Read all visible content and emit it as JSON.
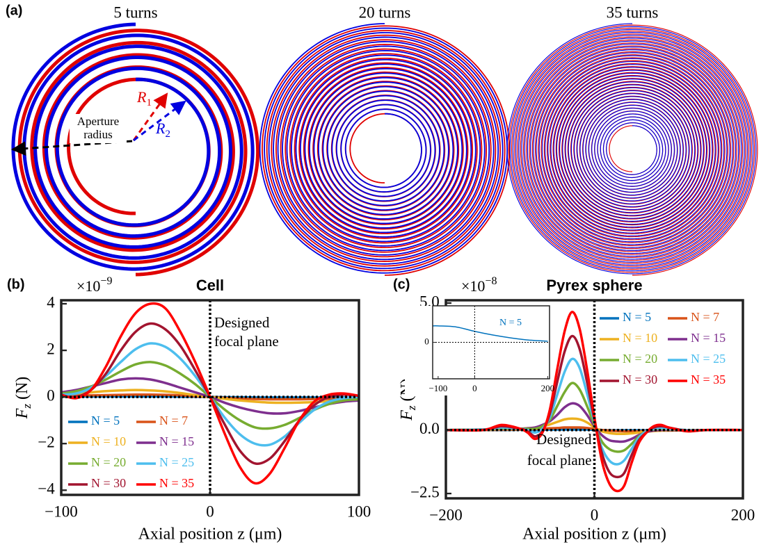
{
  "panel_a": {
    "label": "(a)",
    "spirals": [
      {
        "title": "5 turns",
        "turns": 5
      },
      {
        "title": "20 turns",
        "turns": 20
      },
      {
        "title": "35 turns",
        "turns": 35
      }
    ],
    "aperture_label": [
      "Aperture",
      "radius"
    ],
    "r1": {
      "main": "R",
      "sub": "1"
    },
    "r2": {
      "main": "R",
      "sub": "2"
    }
  },
  "chart_data": [
    {
      "type": "line",
      "panel_label": "(b)",
      "title": "Cell",
      "multiplier": {
        "base": "×10",
        "exp": "−9"
      },
      "ylabel": {
        "main": "F",
        "sub": "z",
        "unit": "(N)"
      },
      "xlabel": "Axial position z (μm)",
      "annotation": [
        "Designed",
        "focal plane"
      ],
      "x": [
        -100,
        -90,
        -80,
        -70,
        -60,
        -50,
        -40,
        -30,
        -20,
        -10,
        0,
        10,
        20,
        30,
        40,
        50,
        60,
        70,
        80,
        90,
        100
      ],
      "series": [
        {
          "name": "N = 5",
          "color": "#0072bd",
          "values": [
            0.02,
            0.02,
            0.02,
            0.02,
            0.02,
            0.02,
            0.02,
            0.02,
            0.01,
            0.01,
            0,
            -0.01,
            -0.01,
            -0.02,
            -0.02,
            -0.02,
            -0.02,
            -0.02,
            -0.02,
            -0.02,
            -0.02
          ]
        },
        {
          "name": "N = 7",
          "color": "#d95319",
          "values": [
            0.05,
            0.06,
            0.07,
            0.08,
            0.09,
            0.1,
            0.1,
            0.09,
            0.07,
            0.03,
            0,
            -0.04,
            -0.07,
            -0.09,
            -0.1,
            -0.1,
            -0.1,
            -0.09,
            -0.08,
            -0.07,
            -0.06
          ]
        },
        {
          "name": "N = 10",
          "color": "#edb120",
          "values": [
            0.1,
            0.15,
            0.2,
            0.25,
            0.28,
            0.3,
            0.28,
            0.24,
            0.17,
            0.08,
            0,
            -0.08,
            -0.15,
            -0.2,
            -0.24,
            -0.25,
            -0.24,
            -0.22,
            -0.18,
            -0.15,
            -0.12
          ]
        },
        {
          "name": "N = 15",
          "color": "#7e2f8e",
          "values": [
            0.2,
            0.3,
            0.45,
            0.6,
            0.75,
            0.8,
            0.75,
            0.6,
            0.4,
            0.2,
            0,
            -0.25,
            -0.45,
            -0.6,
            -0.7,
            -0.7,
            -0.6,
            -0.45,
            -0.3,
            -0.2,
            -0.15
          ]
        },
        {
          "name": "N = 20",
          "color": "#77ac30",
          "values": [
            0.15,
            0.25,
            0.45,
            0.75,
            1.1,
            1.4,
            1.5,
            1.35,
            1.0,
            0.55,
            0,
            -0.55,
            -1.0,
            -1.3,
            -1.35,
            -1.2,
            -0.9,
            -0.55,
            -0.3,
            -0.15,
            -0.1
          ]
        },
        {
          "name": "N = 25",
          "color": "#4dbeee",
          "values": [
            0.1,
            0.15,
            0.4,
            0.9,
            1.5,
            2.05,
            2.3,
            2.15,
            1.65,
            0.9,
            0,
            -0.9,
            -1.6,
            -2.0,
            -2.05,
            -1.7,
            -1.1,
            -0.55,
            -0.2,
            -0.05,
            0
          ]
        },
        {
          "name": "N = 30",
          "color": "#a2142f",
          "values": [
            0.05,
            0,
            0.3,
            1.0,
            2.0,
            2.8,
            3.15,
            2.9,
            2.2,
            1.15,
            0,
            -1.2,
            -2.3,
            -2.85,
            -2.65,
            -1.9,
            -1.0,
            -0.35,
            0,
            0.1,
            0.05
          ]
        },
        {
          "name": "N = 35",
          "color": "#ff0000",
          "values": [
            0.1,
            -0.05,
            0.3,
            1.3,
            2.6,
            3.6,
            4.0,
            3.8,
            2.8,
            1.5,
            0,
            -1.6,
            -3.0,
            -3.7,
            -3.3,
            -2.2,
            -1.0,
            -0.2,
            0.1,
            0.15,
            0.05
          ]
        }
      ],
      "xlim": [
        -100,
        100
      ],
      "xticks": [
        {
          "value": -100,
          "label": "−100"
        },
        0,
        100
      ],
      "ylim": [
        -4.2,
        4.15
      ],
      "yticks": [
        {
          "value": -4,
          "label": "−4"
        },
        {
          "value": -2,
          "label": "−2"
        },
        0,
        2,
        4
      ],
      "legend": "lower left",
      "vline": 0,
      "hline": 0
    },
    {
      "type": "line",
      "panel_label": "(c)",
      "title": "Pyrex sphere",
      "multiplier": {
        "base": "×10",
        "exp": "−8"
      },
      "ylabel": {
        "main": "F",
        "sub": "z",
        "unit": "(N)"
      },
      "xlabel": "Axial position z (μm)",
      "annotation": [
        "Designed",
        "focal plane"
      ],
      "x": [
        -200,
        -150,
        -125,
        -100,
        -90,
        -80,
        -70,
        -60,
        -50,
        -40,
        -30,
        -20,
        -10,
        0,
        10,
        20,
        30,
        40,
        50,
        60,
        70,
        80,
        90,
        100,
        125,
        150,
        200
      ],
      "series": [
        {
          "name": "N = 5",
          "color": "#0072bd",
          "values": [
            0,
            0,
            0,
            0.01,
            0.01,
            0.01,
            0.01,
            0.02,
            0.02,
            0.02,
            0.02,
            0.02,
            0.02,
            0.01,
            0,
            -0.01,
            -0.01,
            -0.01,
            -0.01,
            -0.01,
            -0.01,
            -0.01,
            0,
            0,
            0,
            0,
            0
          ]
        },
        {
          "name": "N = 7",
          "color": "#d95319",
          "values": [
            0,
            0,
            0.01,
            0.02,
            0.03,
            0.04,
            0.05,
            0.07,
            0.08,
            0.1,
            0.1,
            0.1,
            0.08,
            0.04,
            0,
            -0.02,
            -0.04,
            -0.05,
            -0.05,
            -0.05,
            -0.04,
            -0.03,
            -0.02,
            -0.02,
            -0.01,
            0,
            0
          ]
        },
        {
          "name": "N = 10",
          "color": "#edb120",
          "values": [
            0,
            0.01,
            0.02,
            0.05,
            0.07,
            0.1,
            0.15,
            0.22,
            0.32,
            0.42,
            0.45,
            0.42,
            0.3,
            0.1,
            -0.05,
            -0.12,
            -0.15,
            -0.15,
            -0.13,
            -0.1,
            -0.07,
            -0.04,
            -0.02,
            -0.01,
            0,
            0,
            0
          ]
        },
        {
          "name": "N = 15",
          "color": "#7e2f8e",
          "values": [
            0,
            0.02,
            0.03,
            0.05,
            0.07,
            0.1,
            0.2,
            0.35,
            0.6,
            0.9,
            1.05,
            0.95,
            0.6,
            0.15,
            -0.2,
            -0.4,
            -0.45,
            -0.45,
            -0.35,
            -0.2,
            -0.08,
            -0.02,
            0,
            0,
            0,
            0,
            0
          ]
        },
        {
          "name": "N = 20",
          "color": "#77ac30",
          "values": [
            0,
            0.02,
            0.05,
            0.05,
            0.05,
            0.05,
            0.15,
            0.4,
            0.95,
            1.5,
            1.85,
            1.6,
            0.95,
            0.2,
            -0.45,
            -0.75,
            -0.85,
            -0.8,
            -0.55,
            -0.25,
            -0.05,
            0.03,
            0.05,
            0.03,
            0,
            0,
            0
          ]
        },
        {
          "name": "N = 25",
          "color": "#4dbeee",
          "values": [
            0,
            0.02,
            0.1,
            0.05,
            0,
            -0.1,
            0.05,
            0.5,
            1.4,
            2.3,
            2.8,
            2.45,
            1.45,
            0.3,
            -0.7,
            -1.2,
            -1.35,
            -1.2,
            -0.75,
            -0.3,
            -0.05,
            0.05,
            0.08,
            0.05,
            0,
            0,
            0
          ]
        },
        {
          "name": "N = 30",
          "color": "#a2142f",
          "values": [
            0,
            0,
            0.15,
            0.05,
            -0.05,
            -0.25,
            -0.05,
            0.65,
            1.9,
            3.1,
            3.7,
            3.2,
            1.9,
            0.4,
            -0.9,
            -1.65,
            -1.85,
            -1.7,
            -1.0,
            -0.4,
            -0.1,
            0.1,
            0.15,
            0.1,
            -0.03,
            0,
            0
          ]
        },
        {
          "name": "N = 35",
          "color": "#ff0000",
          "values": [
            0,
            0,
            0.2,
            0.05,
            -0.1,
            -0.35,
            -0.1,
            0.8,
            2.4,
            3.9,
            4.65,
            4.0,
            2.4,
            0.5,
            -1.2,
            -2.1,
            -2.4,
            -2.2,
            -1.3,
            -0.5,
            -0.1,
            0.15,
            0.2,
            0.1,
            -0.05,
            0,
            0
          ]
        }
      ],
      "xlim": [
        -200,
        200
      ],
      "xticks": [
        {
          "value": -200,
          "label": "−200"
        },
        0,
        200
      ],
      "ylim": [
        -2.69,
        5.11
      ],
      "yticks": [
        {
          "value": -2.5,
          "label": "−2.5"
        },
        {
          "value": 0,
          "label": "0.0"
        },
        {
          "value": 2.5,
          "label": "2.5"
        },
        {
          "value": 5,
          "label": "5.0"
        }
      ],
      "legend": "upper right",
      "vline": 0,
      "hline": 0,
      "inset": {
        "x": [
          -115,
          -100,
          -50,
          0,
          50,
          100,
          150,
          200
        ],
        "series": [
          {
            "name": "N = 5",
            "color": "#0072bd",
            "values": [
              0.45,
              0.45,
              0.42,
              0.3,
              0.2,
              0.12,
              0.06,
              0.03
            ]
          }
        ],
        "xlim": [
          -115,
          205
        ],
        "xticks": [
          {
            "value": -100,
            "label": "−100"
          },
          0,
          200
        ],
        "ylim": [
          -1,
          1
        ],
        "yticks": [
          0
        ],
        "vline": 0,
        "hline": 0
      }
    }
  ]
}
